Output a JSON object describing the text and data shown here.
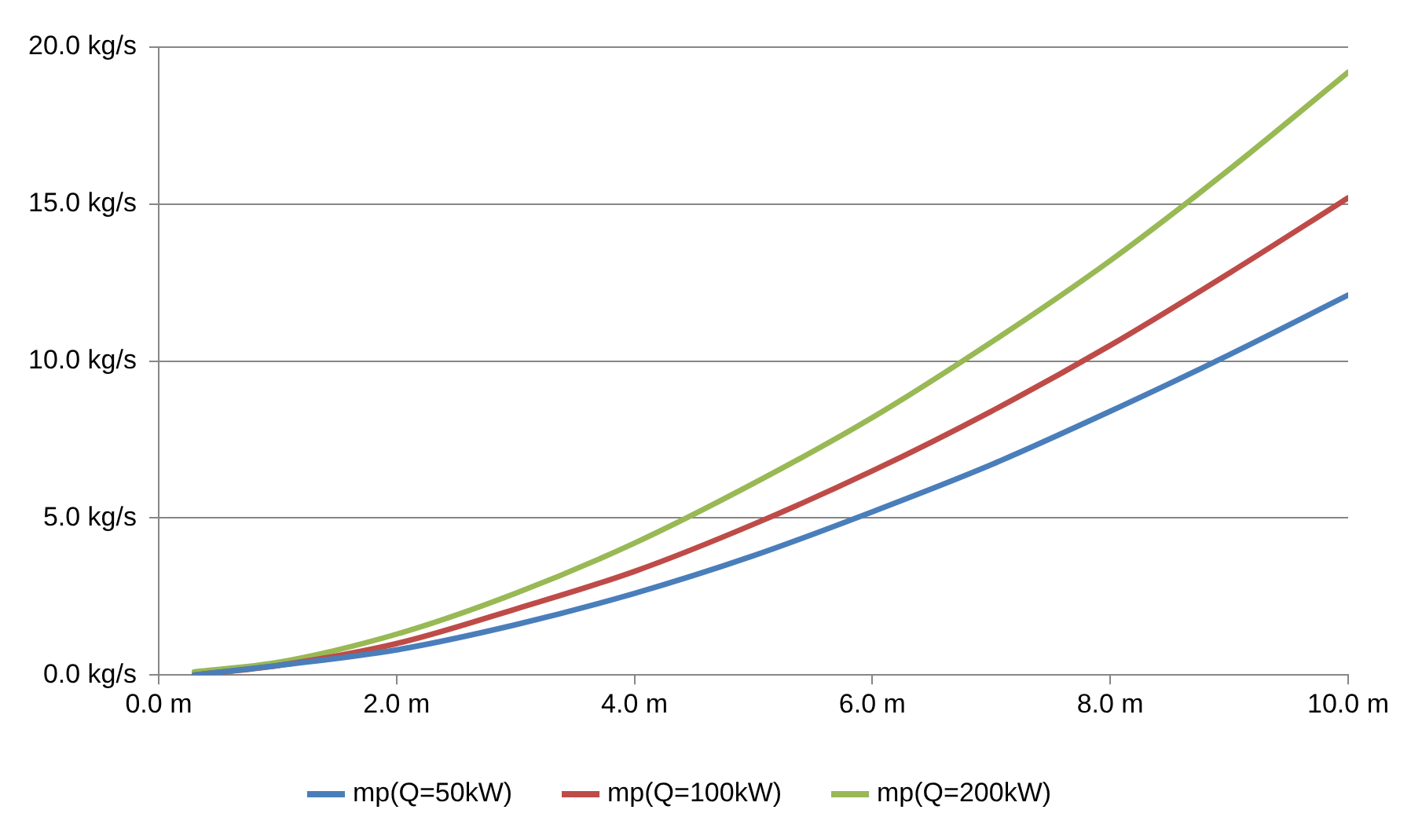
{
  "chart_data": {
    "type": "line",
    "x": [
      0.3,
      1,
      2,
      3,
      4,
      5,
      6,
      7,
      8,
      9,
      10
    ],
    "series": [
      {
        "name": "mp(Q=50kW)",
        "color": "#4a7ebb",
        "values": [
          0.0,
          0.3,
          0.8,
          1.6,
          2.6,
          3.8,
          5.2,
          6.7,
          8.4,
          10.2,
          12.1
        ]
      },
      {
        "name": "mp(Q=100kW)",
        "color": "#be4b48",
        "values": [
          0.0,
          0.3,
          1.0,
          2.1,
          3.3,
          4.8,
          6.5,
          8.4,
          10.5,
          12.8,
          15.2
        ]
      },
      {
        "name": "mp(Q=200kW)",
        "color": "#98b954",
        "values": [
          0.1,
          0.4,
          1.3,
          2.6,
          4.2,
          6.1,
          8.2,
          10.6,
          13.2,
          16.1,
          19.2
        ]
      }
    ],
    "xlim": [
      0,
      10
    ],
    "xticks": [
      {
        "value": 0,
        "label": "0.0 m"
      },
      {
        "value": 2,
        "label": "2.0 m"
      },
      {
        "value": 4,
        "label": "4.0 m"
      },
      {
        "value": 6,
        "label": "6.0 m"
      },
      {
        "value": 8,
        "label": "8.0 m"
      },
      {
        "value": 10,
        "label": "10.0 m"
      }
    ],
    "ylim": [
      0,
      20
    ],
    "yticks": [
      {
        "value": 0,
        "label": "0.0 kg/s"
      },
      {
        "value": 5,
        "label": "5.0 kg/s"
      },
      {
        "value": 10,
        "label": "10.0 kg/s"
      },
      {
        "value": 15,
        "label": "15.0 kg/s"
      },
      {
        "value": 20,
        "label": "20.0 kg/s"
      }
    ],
    "grid": "y",
    "legend": "bottom",
    "marker": "none",
    "line_style": "solid"
  }
}
